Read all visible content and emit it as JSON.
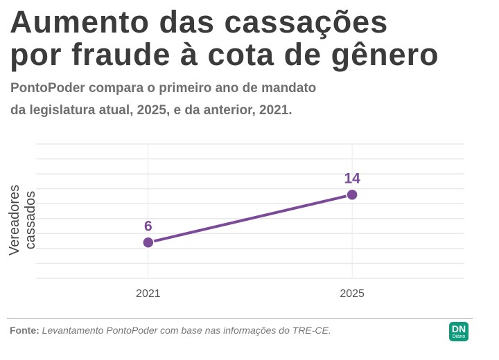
{
  "title_line1": "Aumento das cassações",
  "title_line2": "por fraude à cota de gênero",
  "subtitle_line1": "PontoPoder compara o primeiro ano de mandato",
  "subtitle_line2": "da legislatura atual, 2025, e da anterior, 2021.",
  "source_label": "Fonte:",
  "source_text": "Levantamento PontoPoder com base nas informações do TRE-CE.",
  "logo": {
    "text": "DN",
    "subtext": "Diário",
    "color": "#0f9a7c"
  },
  "chart_data": {
    "type": "line",
    "x": [
      "2021",
      "2025"
    ],
    "x_values": [
      2021,
      2025
    ],
    "series": [
      {
        "values": [
          6,
          14
        ],
        "color": "#7b4b9a"
      }
    ],
    "data_labels": [
      "6",
      "14"
    ],
    "ylabel": "Vereadores cassados",
    "xlabel": "",
    "xlim": [
      2018.8,
      2027.2
    ],
    "ylim": [
      0,
      22.5
    ],
    "y_grid_step": 2.5,
    "y_tick_labels_shown": false,
    "grid": true
  }
}
